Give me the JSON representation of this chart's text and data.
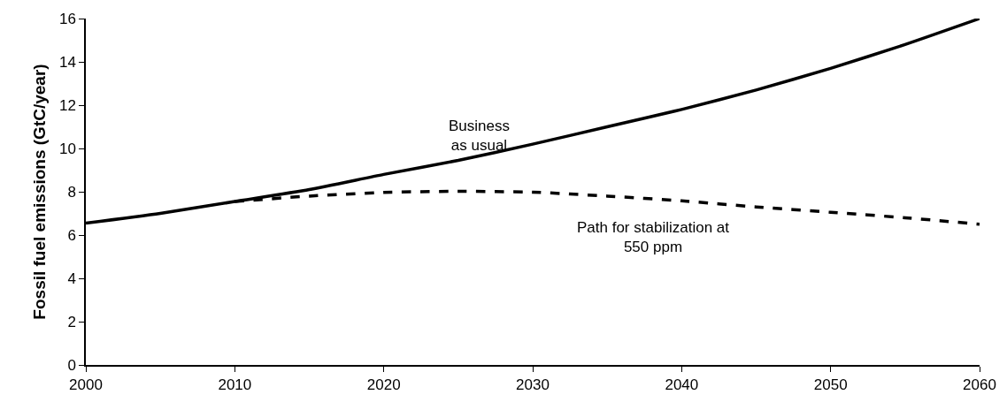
{
  "chart_data": {
    "type": "line",
    "ylabel": "Fossil fuel emissions (GtC/year)",
    "xlim": [
      2000,
      2060
    ],
    "xticks": [
      2000,
      2010,
      2020,
      2030,
      2040,
      2050,
      2060
    ],
    "ylim": [
      0,
      16
    ],
    "yticks": [
      0,
      2,
      4,
      6,
      8,
      10,
      12,
      14,
      16
    ],
    "marker": "none",
    "series": [
      {
        "color": "#000000",
        "line_style": "solid",
        "x": [
          2000,
          2005,
          2010,
          2015,
          2020,
          2025,
          2030,
          2035,
          2040,
          2045,
          2050,
          2055,
          2060
        ],
        "values": [
          6.55,
          7.0,
          7.55,
          8.1,
          8.8,
          9.45,
          10.2,
          11.0,
          11.8,
          12.7,
          13.7,
          14.8,
          16.0
        ]
      },
      {
        "color": "#000000",
        "line_style": "dashed",
        "x": [
          2010,
          2015,
          2020,
          2025,
          2030,
          2035,
          2040,
          2045,
          2050,
          2055,
          2060
        ],
        "values": [
          7.55,
          7.8,
          7.97,
          8.02,
          7.98,
          7.8,
          7.58,
          7.3,
          7.05,
          6.8,
          6.5
        ]
      }
    ],
    "annotations": [
      "Business\nas usual",
      "Path for stabilization at\n550 ppm"
    ]
  }
}
